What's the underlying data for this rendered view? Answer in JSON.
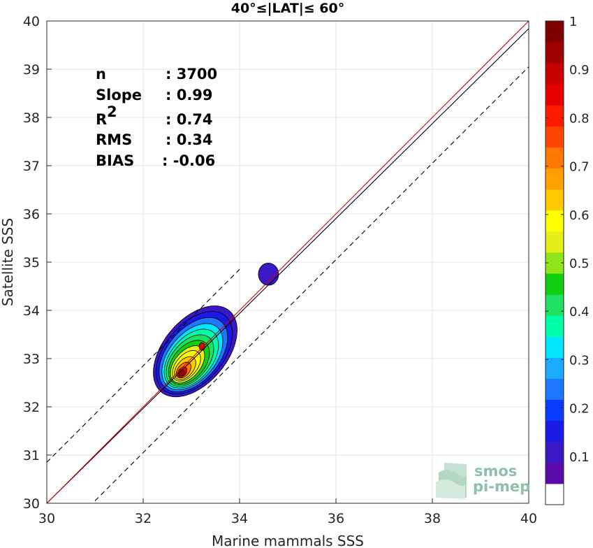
{
  "chart_data": {
    "type": "contour",
    "title": "40°≤|LAT|≤ 60°",
    "xlabel": "Marine mammals SSS",
    "ylabel": "Satellite SSS",
    "xlim": [
      30,
      40
    ],
    "ylim": [
      30,
      40
    ],
    "xticks": [
      "30",
      "32",
      "34",
      "36",
      "38",
      "40"
    ],
    "yticks": [
      "30",
      "31",
      "32",
      "33",
      "34",
      "35",
      "36",
      "37",
      "38",
      "39",
      "40"
    ],
    "grid": true,
    "stats": [
      {
        "label": "n",
        "value": ": 3700"
      },
      {
        "label": "Slope",
        "value": ": 0.99"
      },
      {
        "label": "R",
        "sup": "2",
        "value": ": 0.74"
      },
      {
        "label": "RMS",
        "value": ": 0.34"
      },
      {
        "label": "BIAS",
        "value": ": -0.06"
      }
    ],
    "lines": {
      "one_to_one": {
        "color": "#cc0000",
        "x": [
          30,
          40
        ],
        "y": [
          30,
          40
        ]
      },
      "regression": {
        "color": "#000000",
        "x": [
          30,
          40
        ],
        "y": [
          30,
          39.84
        ]
      },
      "upper_bound": {
        "style": "dashed",
        "x": [
          30,
          34
        ],
        "y": [
          30.85,
          34.85
        ]
      },
      "lower_bound": {
        "style": "dashed",
        "x": [
          31,
          40
        ],
        "y": [
          30.05,
          39.05
        ]
      }
    },
    "density_peak": {
      "x": 32.8,
      "y": 32.7,
      "level": 1.0
    },
    "secondary_blob": {
      "x": 34.6,
      "y": 34.75,
      "level": 0.1
    },
    "colorbar": {
      "ticks": [
        "0.1",
        "0.2",
        "0.3",
        "0.4",
        "0.5",
        "0.6",
        "0.7",
        "0.8",
        "0.9",
        "1"
      ],
      "colors": [
        "#ffffff",
        "#5a0aa8",
        "#3a18c8",
        "#1a1ae6",
        "#0a3cff",
        "#1e78ff",
        "#1aaaff",
        "#00e6ff",
        "#00ffaa",
        "#20e060",
        "#10d010",
        "#8ee61a",
        "#e6f018",
        "#ffff00",
        "#ffc800",
        "#ffa000",
        "#ff7800",
        "#ff4600",
        "#ff1a00",
        "#e60000",
        "#c80000",
        "#a00000",
        "#800000"
      ]
    }
  },
  "logo": {
    "line1": "smos",
    "line2": "pi-mep"
  }
}
